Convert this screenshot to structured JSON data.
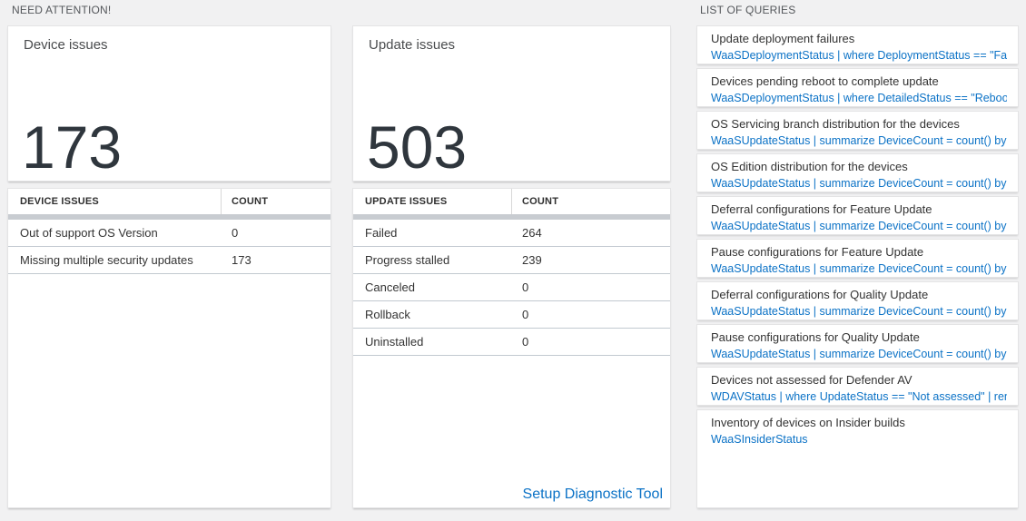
{
  "sections": {
    "need_attention": "NEED ATTENTION!",
    "list_of_queries": "LIST OF QUERIES"
  },
  "colors": {
    "accent_blue": "#0b72c6",
    "table_bar_gray": "#c8ccd1",
    "background": "#f1f1f2"
  },
  "device_issues": {
    "title": "Device issues",
    "total": "173",
    "table": {
      "headers": [
        "DEVICE ISSUES",
        "COUNT"
      ],
      "rows": [
        {
          "label": "Out of support OS Version",
          "count": "0"
        },
        {
          "label": "Missing multiple security updates",
          "count": "173"
        }
      ]
    }
  },
  "update_issues": {
    "title": "Update issues",
    "total": "503",
    "table": {
      "headers": [
        "UPDATE ISSUES",
        "COUNT"
      ],
      "rows": [
        {
          "label": "Failed",
          "count": "264"
        },
        {
          "label": "Progress stalled",
          "count": "239"
        },
        {
          "label": "Canceled",
          "count": "0"
        },
        {
          "label": "Rollback",
          "count": "0"
        },
        {
          "label": "Uninstalled",
          "count": "0"
        }
      ]
    },
    "footer_link": "Setup Diagnostic Tool"
  },
  "queries": {
    "items": [
      {
        "title": "Update deployment failures",
        "query": "WaaSDeploymentStatus | where DeploymentStatus == \"Failed\" |..."
      },
      {
        "title": "Devices pending reboot to complete update",
        "query": "WaaSDeploymentStatus | where DetailedStatus == \"Reboot pend..."
      },
      {
        "title": "OS Servicing branch distribution for the devices",
        "query": "WaaSUpdateStatus | summarize DeviceCount = count() by OSSer..."
      },
      {
        "title": "OS Edition distribution for the devices",
        "query": "WaaSUpdateStatus | summarize DeviceCount = count() by OSEdit..."
      },
      {
        "title": "Deferral configurations for Feature Update",
        "query": "WaaSUpdateStatus | summarize DeviceCount = count() by Featur..."
      },
      {
        "title": "Pause configurations for Feature Update",
        "query": "WaaSUpdateStatus | summarize DeviceCount = count() by Featur..."
      },
      {
        "title": "Deferral configurations for Quality Update",
        "query": "WaaSUpdateStatus | summarize DeviceCount = count() by Qualit..."
      },
      {
        "title": "Pause configurations for Quality Update",
        "query": "WaaSUpdateStatus | summarize DeviceCount = count() by Qualit..."
      },
      {
        "title": "Devices not assessed for Defender AV",
        "query": "WDAVStatus | where UpdateStatus == \"Not assessed\" | render ta..."
      },
      {
        "title": "Inventory of devices on Insider builds",
        "query": "WaaSInsiderStatus"
      }
    ]
  }
}
